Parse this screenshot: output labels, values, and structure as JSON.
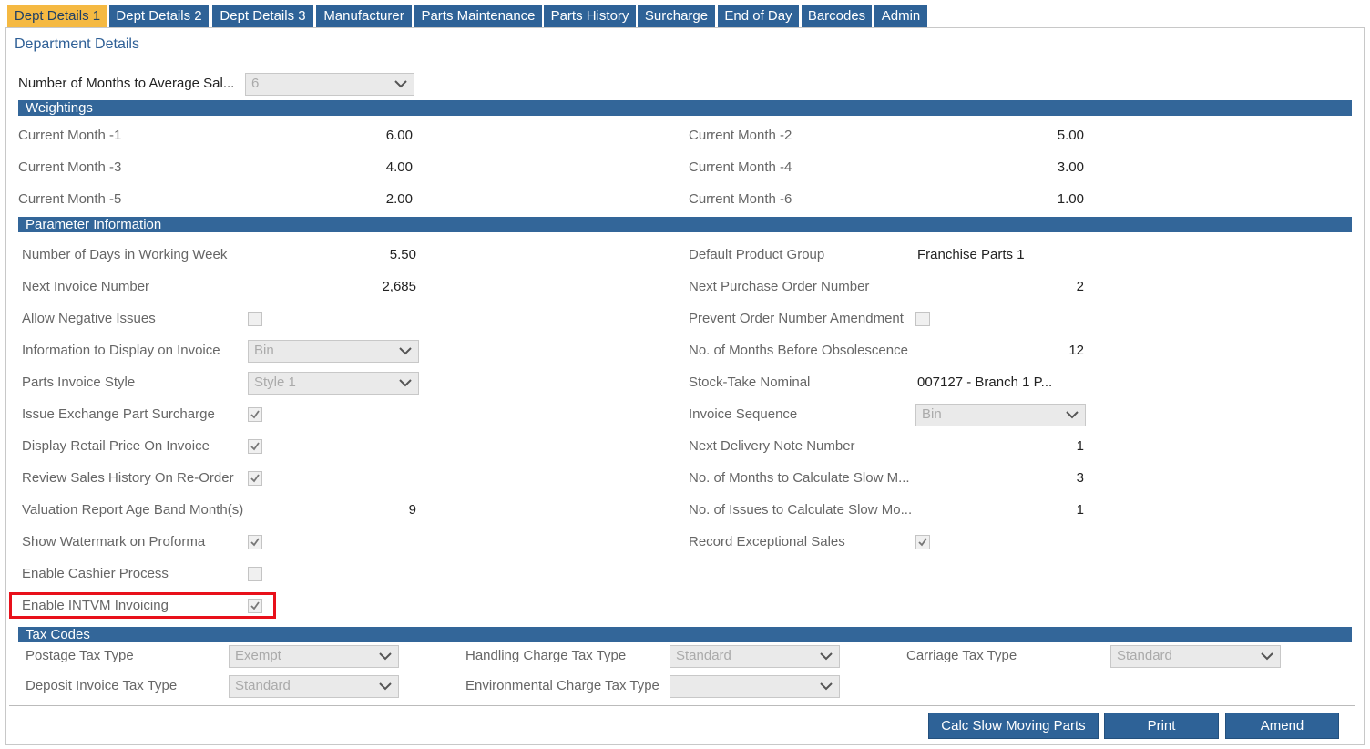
{
  "tabs": [
    {
      "label": "Dept Details 1",
      "active": true
    },
    {
      "label": "Dept Details 2"
    },
    {
      "label": "Dept Details 3"
    },
    {
      "label": "Manufacturer"
    },
    {
      "label": "Parts Maintenance"
    },
    {
      "label": "Parts History"
    },
    {
      "label": "Surcharge"
    },
    {
      "label": "End of Day"
    },
    {
      "label": "Barcodes"
    },
    {
      "label": "Admin"
    }
  ],
  "title": "Department Details",
  "months_field": {
    "label": "Number of Months to Average Sal...",
    "value": "6",
    "type": "select"
  },
  "weightings": {
    "title": "Weightings",
    "rows": [
      [
        {
          "label": "Current Month -1",
          "value": "6.00"
        },
        {
          "label": "Current Month -2",
          "value": "5.00"
        }
      ],
      [
        {
          "label": "Current Month -3",
          "value": "4.00"
        },
        {
          "label": "Current Month -4",
          "value": "3.00"
        }
      ],
      [
        {
          "label": "Current Month -5",
          "value": "2.00"
        },
        {
          "label": "Current Month -6",
          "value": "1.00"
        }
      ]
    ]
  },
  "parameters": {
    "title": "Parameter Information",
    "left": [
      {
        "label": "Number of Days in Working Week",
        "type": "text",
        "value": "5.50"
      },
      {
        "label": "Next Invoice Number",
        "type": "text",
        "value": "2,685"
      },
      {
        "label": "Allow Negative Issues",
        "type": "checkbox",
        "checked": false
      },
      {
        "label": "Information to Display on Invoice",
        "type": "select",
        "value": "Bin"
      },
      {
        "label": "Parts Invoice Style",
        "type": "select",
        "value": "Style 1"
      },
      {
        "label": "Issue Exchange Part Surcharge",
        "type": "checkbox",
        "checked": true
      },
      {
        "label": "Display Retail Price On Invoice",
        "type": "checkbox",
        "checked": true
      },
      {
        "label": "Review Sales History On Re-Order",
        "type": "checkbox",
        "checked": true
      },
      {
        "label": "Valuation Report Age Band Month(s)",
        "type": "text",
        "value": "9"
      },
      {
        "label": "Show Watermark on Proforma",
        "type": "checkbox",
        "checked": true
      },
      {
        "label": "Enable Cashier Process",
        "type": "checkbox",
        "checked": false
      },
      {
        "label": "Enable INTVM Invoicing",
        "type": "checkbox",
        "checked": true,
        "highlighted": true
      }
    ],
    "right": [
      {
        "label": "Default Product Group",
        "type": "text",
        "value": "Franchise Parts 1"
      },
      {
        "label": "Next Purchase Order Number",
        "type": "text",
        "value": "2"
      },
      {
        "label": "Prevent Order Number Amendment",
        "type": "checkbox",
        "checked": false
      },
      {
        "label": "No. of Months Before Obsolescence",
        "type": "text",
        "value": "12"
      },
      {
        "label": "Stock-Take Nominal",
        "type": "text",
        "value": "007127 - Branch 1 P..."
      },
      {
        "label": "Invoice Sequence",
        "type": "select",
        "value": "Bin"
      },
      {
        "label": "Next Delivery Note Number",
        "type": "text",
        "value": "1"
      },
      {
        "label": "No. of Months to Calculate Slow M...",
        "type": "text",
        "value": "3"
      },
      {
        "label": "No. of Issues to Calculate Slow Mo...",
        "type": "text",
        "value": "1"
      },
      {
        "label": "Record Exceptional Sales",
        "type": "checkbox",
        "checked": true
      }
    ]
  },
  "tax_codes": {
    "title": "Tax Codes",
    "fields": [
      {
        "label": "Postage Tax Type",
        "value": "Exempt"
      },
      {
        "label": "Handling Charge Tax Type",
        "value": "Standard"
      },
      {
        "label": "Carriage Tax Type",
        "value": "Standard"
      },
      {
        "label": "Deposit Invoice Tax Type",
        "value": "Standard"
      },
      {
        "label": "Environmental Charge Tax Type"
      }
    ]
  },
  "buttons": [
    "Calc Slow Moving Parts",
    "Print",
    "Amend"
  ]
}
